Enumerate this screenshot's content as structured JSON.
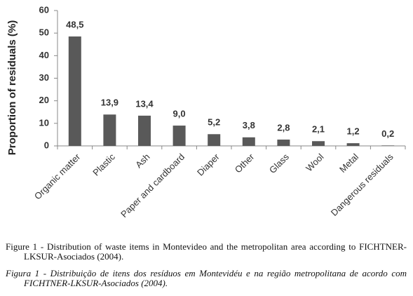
{
  "chart_data": {
    "type": "bar",
    "ylabel": "Proportion of residuals (%)",
    "categories": [
      "Organic matter",
      "Plastic",
      "Ash",
      "Paper and cardboard",
      "Diaper",
      "Other",
      "Glass",
      "Wool",
      "Metal",
      "Dangerous residuals"
    ],
    "values": [
      48.5,
      13.9,
      13.4,
      9.0,
      5.2,
      3.8,
      2.8,
      2.1,
      1.2,
      0.2
    ],
    "value_labels": [
      "48,5",
      "13,9",
      "13,4",
      "9,0",
      "5,2",
      "3,8",
      "2,8",
      "2,1",
      "1,2",
      "0,2"
    ],
    "color": "#595959",
    "ylim": [
      0,
      60
    ],
    "yticks": [
      0,
      10,
      20,
      30,
      40,
      50,
      60
    ],
    "grid": false
  },
  "captions": [
    "Figure 1 - Distribution of waste items in Montevideo and the metropolitan area according to FICHTNER-LKSUR-Asociados (2004).",
    "Figura 1 - Distribuição de itens dos resíduos em Montevidéu e na região metropolitana de acordo com FICHTNER-LKSUR-Asociados (2004)."
  ]
}
